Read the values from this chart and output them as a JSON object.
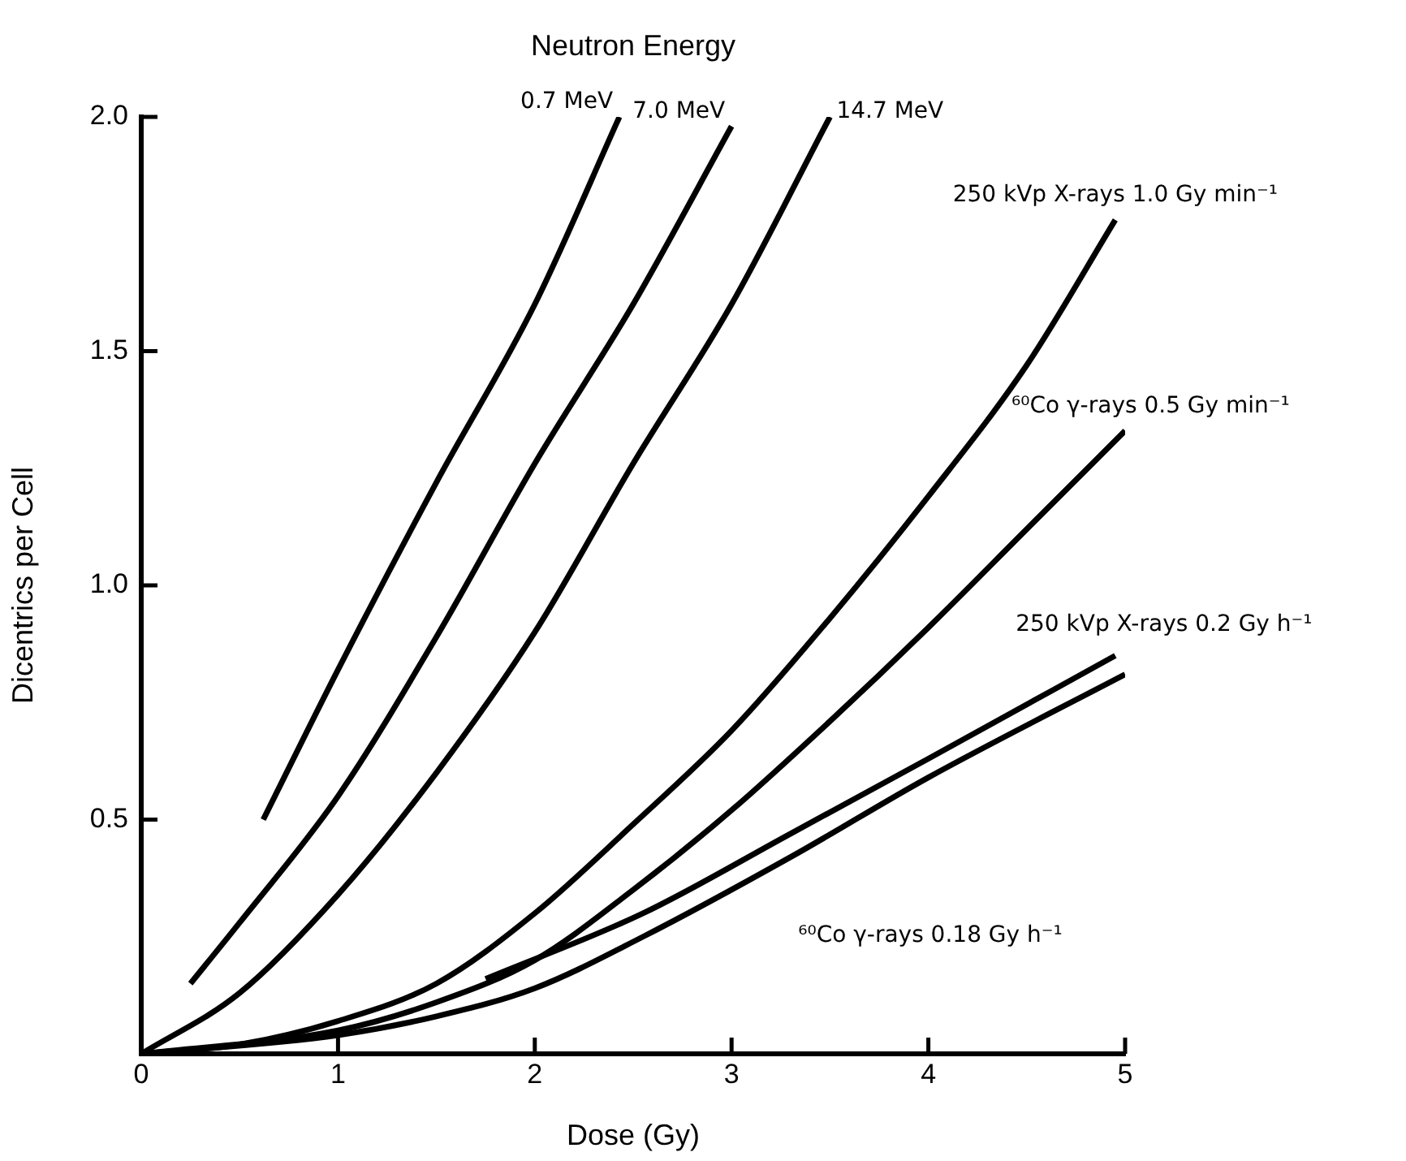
{
  "chart_data": {
    "type": "line",
    "title": "Neutron Energy",
    "xlabel": "Dose (Gy)",
    "ylabel": "Dicentrics per Cell",
    "xlim": [
      0,
      5
    ],
    "xticks": [
      0,
      1,
      2,
      3,
      4,
      5
    ],
    "ylim": [
      0,
      2
    ],
    "yticks": [
      {
        "value": 0,
        "label": null
      },
      0.5,
      {
        "value": 1,
        "label": "1.0"
      },
      1.5,
      {
        "value": 2,
        "label": "2.0"
      }
    ],
    "grid": false,
    "legend": false,
    "marker": "none",
    "line_style": "solid",
    "series": [
      {
        "name": "0.7 MeV",
        "color": "#000000",
        "x": [
          0.62,
          1,
          1.5,
          2,
          2.43
        ],
        "values": [
          0.5,
          0.82,
          1.22,
          1.6,
          2.0
        ]
      },
      {
        "name": "7.0 MeV",
        "color": "#000000",
        "x": [
          0.25,
          0.5,
          1,
          1.5,
          2,
          2.5,
          3.0
        ],
        "values": [
          0.15,
          0.28,
          0.55,
          0.89,
          1.26,
          1.6,
          1.98
        ]
      },
      {
        "name": "14.7 MeV",
        "color": "#000000",
        "x": [
          0,
          0.5,
          1,
          1.5,
          2,
          2.5,
          3,
          3.5
        ],
        "values": [
          0,
          0.13,
          0.34,
          0.6,
          0.9,
          1.26,
          1.6,
          2.0
        ]
      },
      {
        "name": "250 kVp X-rays 1.0 Gy min⁻¹",
        "color": "#000000",
        "x": [
          0,
          0.5,
          1,
          1.5,
          2,
          2.5,
          3,
          3.5,
          4,
          4.5,
          4.95
        ],
        "values": [
          0,
          0.02,
          0.07,
          0.15,
          0.3,
          0.49,
          0.69,
          0.93,
          1.19,
          1.47,
          1.78
        ]
      },
      {
        "name": "⁶⁰Co γ-rays 0.5 Gy min⁻¹",
        "color": "#000000",
        "x": [
          0,
          1,
          1.5,
          2,
          2.5,
          3,
          3.5,
          4,
          4.5,
          5
        ],
        "values": [
          0,
          0.05,
          0.11,
          0.2,
          0.35,
          0.52,
          0.71,
          0.91,
          1.12,
          1.33
        ]
      },
      {
        "name": "250 kVp X-rays 0.2 Gy h⁻¹",
        "color": "#000000",
        "x": [
          1.75,
          2.55,
          3.3,
          4,
          4.95
        ],
        "values": [
          0.16,
          0.3,
          0.47,
          0.63,
          0.85
        ]
      },
      {
        "name": "⁶⁰Co γ-rays 0.18 Gy h⁻¹",
        "color": "#000000",
        "x": [
          0,
          1,
          1.5,
          2,
          2.55,
          3.3,
          4,
          5
        ],
        "values": [
          0,
          0.04,
          0.08,
          0.14,
          0.25,
          0.42,
          0.59,
          0.81
        ]
      }
    ]
  }
}
